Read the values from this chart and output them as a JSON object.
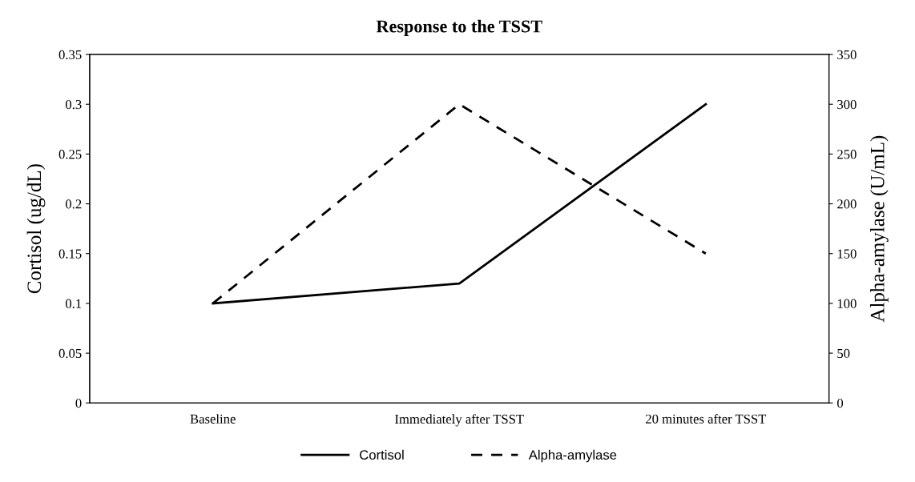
{
  "chart_data": {
    "type": "line",
    "title": "Response to the TSST",
    "ylabel": "Cortisol (ug/dL)",
    "y2label": "Alpha-amylase (U/mL)",
    "categories": [
      "Baseline",
      "Immediately after TSST",
      "20 minutes after TSST"
    ],
    "series": [
      {
        "name": "Cortisol",
        "color": "#000000",
        "values": [
          0.1,
          0.12,
          0.3
        ],
        "line_style": "solid"
      },
      {
        "name": "Alpha-amylase",
        "color": "#000000",
        "values": [
          100,
          300,
          150
        ],
        "line_style": "dashed",
        "axis": "y2"
      }
    ],
    "ylim": [
      0,
      0.35
    ],
    "yticks": [
      {
        "value": 0,
        "label": "0"
      },
      {
        "value": 0.05,
        "label": "0.05"
      },
      {
        "value": 0.1,
        "label": "0.1"
      },
      {
        "value": 0.15,
        "label": "0.15"
      },
      {
        "value": 0.2,
        "label": "0.2"
      },
      {
        "value": 0.25,
        "label": "0.25"
      },
      {
        "value": 0.3,
        "label": "0.3"
      },
      {
        "value": 0.35,
        "label": "0.35"
      }
    ],
    "y2lim": [
      0,
      350
    ],
    "y2ticks": [
      0,
      50,
      100,
      150,
      200,
      250,
      300,
      350
    ],
    "legend": "bottom",
    "grid": false,
    "marker": "none"
  }
}
